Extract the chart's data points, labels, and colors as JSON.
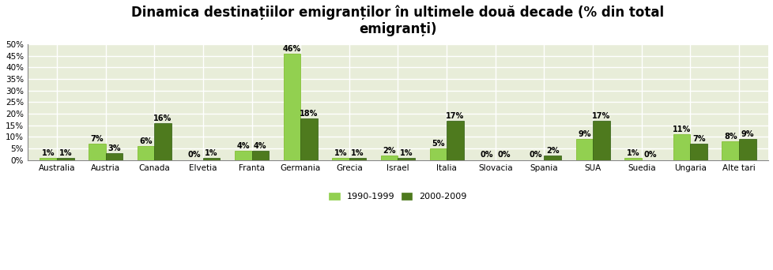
{
  "title": "Dinamica destinațiilor emigranților în ultimele două decade (% din total\nemigranți)",
  "categories": [
    "Australia",
    "Austria",
    "Canada",
    "Elvetia",
    "Franta",
    "Germania",
    "Grecia",
    "Israel",
    "Italia",
    "Slovacia",
    "Spania",
    "SUA",
    "Suedia",
    "Ungaria",
    "Alte tari"
  ],
  "series1_label": "1990-1999",
  "series2_label": "2000-2009",
  "series1_values": [
    1,
    7,
    6,
    0,
    4,
    46,
    1,
    2,
    5,
    0,
    0,
    9,
    1,
    11,
    8
  ],
  "series2_values": [
    1,
    3,
    16,
    1,
    4,
    18,
    1,
    1,
    17,
    0,
    2,
    17,
    0,
    7,
    9
  ],
  "series1_color": "#92d050",
  "series2_color": "#4e7a1e",
  "bar_width": 0.35,
  "ylim": [
    0,
    50
  ],
  "yticks": [
    0,
    5,
    10,
    15,
    20,
    25,
    30,
    35,
    40,
    45,
    50
  ],
  "ytick_labels": [
    "0%",
    "5%",
    "10%",
    "15%",
    "20%",
    "25%",
    "30%",
    "35%",
    "40%",
    "45%",
    "50%"
  ],
  "figure_bg_color": "#ffffff",
  "plot_bg_color": "#e8edd9",
  "grid_color": "#ffffff",
  "title_fontsize": 12,
  "label_fontsize": 7,
  "tick_fontsize": 7.5,
  "legend_fontsize": 8
}
